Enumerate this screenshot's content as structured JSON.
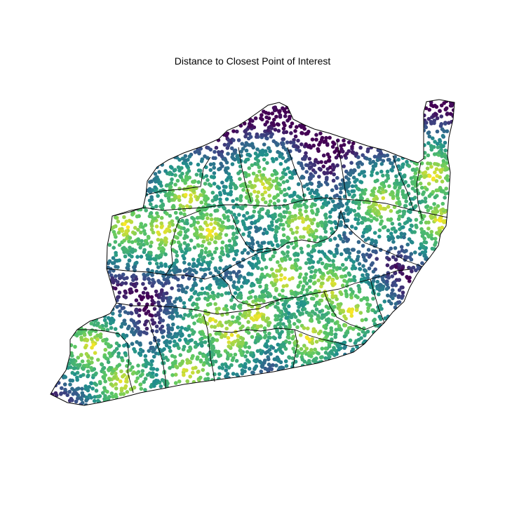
{
  "map": {
    "title": "Distance to Closest Point of Interest",
    "colormap": "viridis",
    "colormap_stops": [
      "#440154",
      "#3b528b",
      "#21908c",
      "#5dc863",
      "#fde725"
    ],
    "boundary_color": "#000000",
    "background": "#ffffff",
    "point_color_meaning": "distance to closest point of interest (dark = far, yellow = near)",
    "point_of_interest_count": 14,
    "colorbar": false,
    "axes_visible": false
  }
}
